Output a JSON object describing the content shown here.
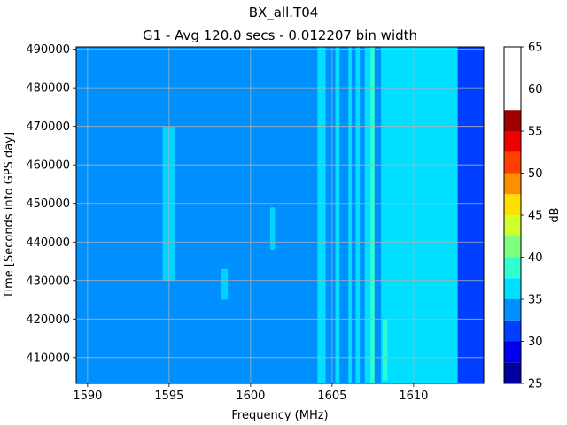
{
  "chart_data": {
    "type": "heatmap",
    "suptitle": "BX_all.T04",
    "title": "G1 - Avg 120.0 secs - 0.012207 bin width",
    "xlabel": "Frequency (MHz)",
    "ylabel": "Time [Seconds into GPS day]",
    "xlim": [
      1589.3,
      1614.3
    ],
    "ylim": [
      403300,
      490600
    ],
    "xticks": [
      1590,
      1595,
      1600,
      1605,
      1610
    ],
    "yticks": [
      410000,
      420000,
      430000,
      440000,
      450000,
      460000,
      470000,
      480000,
      490000
    ],
    "grid": true,
    "colorbar": {
      "label": "dB",
      "min": 25,
      "max": 65,
      "levels": [
        25,
        27.5,
        30,
        32.5,
        35,
        37.5,
        40,
        42.5,
        45,
        47.5,
        50,
        52.5,
        55,
        57.5,
        60,
        62.5,
        65
      ],
      "ticks": [
        25,
        30,
        35,
        40,
        45,
        50,
        55,
        60,
        65
      ],
      "colors": [
        "#00009f",
        "#0000ef",
        "#003fff",
        "#008fff",
        "#00dfff",
        "#2fffcf",
        "#7fff7f",
        "#cfff2f",
        "#ffdf00",
        "#ff8f00",
        "#ff3f00",
        "#ef0000",
        "#9f0000"
      ]
    },
    "bands": [
      {
        "x": [
          1589.3,
          1612.7
        ],
        "level_db": 33.75
      },
      {
        "x": [
          1612.7,
          1614.3
        ],
        "level_db": 31.25
      },
      {
        "x": [
          1604.1,
          1604.6
        ],
        "level_db": 36.25
      },
      {
        "x": [
          1605.2,
          1605.45
        ],
        "level_db": 36.25
      },
      {
        "x": [
          1606.0,
          1606.2
        ],
        "level_db": 36.25
      },
      {
        "x": [
          1606.45,
          1606.7
        ],
        "level_db": 36.25
      },
      {
        "x": [
          1607.0,
          1607.35
        ],
        "level_db": 36.25
      },
      {
        "x": [
          1607.35,
          1607.6
        ],
        "level_db": 38.75
      },
      {
        "x": [
          1608.0,
          1612.7
        ],
        "level_db": 36.25
      }
    ],
    "features": [
      {
        "x": [
          1594.6,
          1595.4
        ],
        "y": [
          430000,
          470000
        ],
        "level_db": 36.25,
        "note": "speckle cluster"
      },
      {
        "x": [
          1598.2,
          1598.6
        ],
        "y": [
          425000,
          433000
        ],
        "level_db": 36.25,
        "note": "squiggle"
      },
      {
        "x": [
          1601.2,
          1601.5
        ],
        "y": [
          438000,
          449000
        ],
        "level_db": 36.25,
        "note": "short streak"
      },
      {
        "x": [
          1608.1,
          1608.4
        ],
        "y": [
          404000,
          420000
        ],
        "level_db": 38.75,
        "note": "streak"
      }
    ]
  }
}
